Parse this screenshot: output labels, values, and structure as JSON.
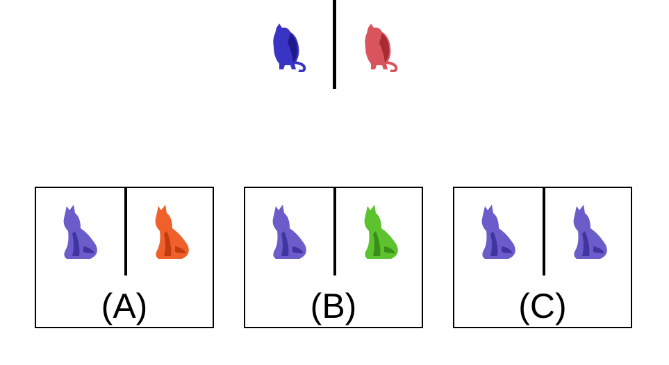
{
  "prompt": {
    "left_animal": {
      "icon": "cat-icon",
      "color": "#3a34c4",
      "shade": "#1e1a8e"
    },
    "right_animal": {
      "icon": "cat-icon",
      "color": "#d9545c",
      "shade": "#a82a33"
    }
  },
  "options": [
    {
      "label": "(A)",
      "left_animal": {
        "icon": "fox-icon",
        "color": "#6a5cc9",
        "shade": "#3f34a0"
      },
      "right_animal": {
        "icon": "fox-icon",
        "color": "#f0602a",
        "shade": "#c23c10"
      }
    },
    {
      "label": "(B)",
      "left_animal": {
        "icon": "fox-icon",
        "color": "#6a5cc9",
        "shade": "#3f34a0"
      },
      "right_animal": {
        "icon": "fox-icon",
        "color": "#5cc22e",
        "shade": "#3a8e18"
      }
    },
    {
      "label": "(C)",
      "left_animal": {
        "icon": "fox-icon",
        "color": "#6a5cc9",
        "shade": "#3f34a0"
      },
      "right_animal": {
        "icon": "fox-icon",
        "color": "#6a5cc9",
        "shade": "#3f34a0"
      }
    }
  ]
}
